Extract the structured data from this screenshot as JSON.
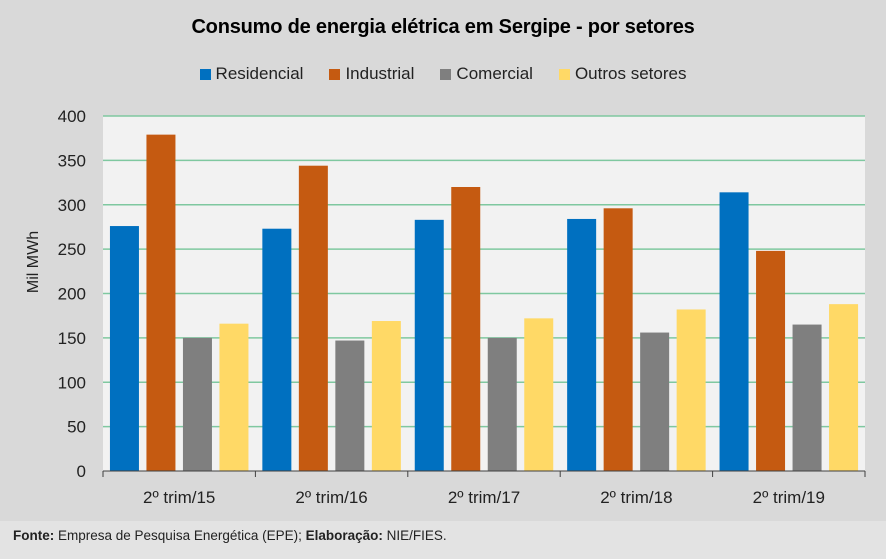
{
  "chart_data": {
    "type": "bar",
    "title": "Consumo de energia elétrica em Sergipe - por setores",
    "xlabel": "",
    "ylabel": "Mil MWh",
    "ylim": [
      0,
      400
    ],
    "yticks": [
      0,
      50,
      100,
      150,
      200,
      250,
      300,
      350,
      400
    ],
    "grid": true,
    "legend_position": "top",
    "categories": [
      "2º trim/15",
      "2º trim/16",
      "2º trim/17",
      "2º trim/18",
      "2º trim/19"
    ],
    "series": [
      {
        "name": "Residencial",
        "color": "#0070c0",
        "values": [
          276,
          273,
          283,
          284,
          314
        ]
      },
      {
        "name": "Industrial",
        "color": "#c55a11",
        "values": [
          379,
          344,
          320,
          296,
          248
        ]
      },
      {
        "name": "Comercial",
        "color": "#7f7f7f",
        "values": [
          150,
          147,
          150,
          156,
          165
        ]
      },
      {
        "name": "Outros setores",
        "color": "#ffd966",
        "values": [
          166,
          169,
          172,
          182,
          188
        ]
      }
    ]
  },
  "colors": {
    "background": "#d9d9d9",
    "plot_background": "#f2f2f2",
    "gridline": "#7fc8a0",
    "axis": "#404040"
  },
  "footer": {
    "source_label": "Fonte:",
    "source_text": " Empresa de Pesquisa Energética (EPE);",
    "credit_label": " Elaboração:",
    "credit_text": " NIE/FIES."
  }
}
